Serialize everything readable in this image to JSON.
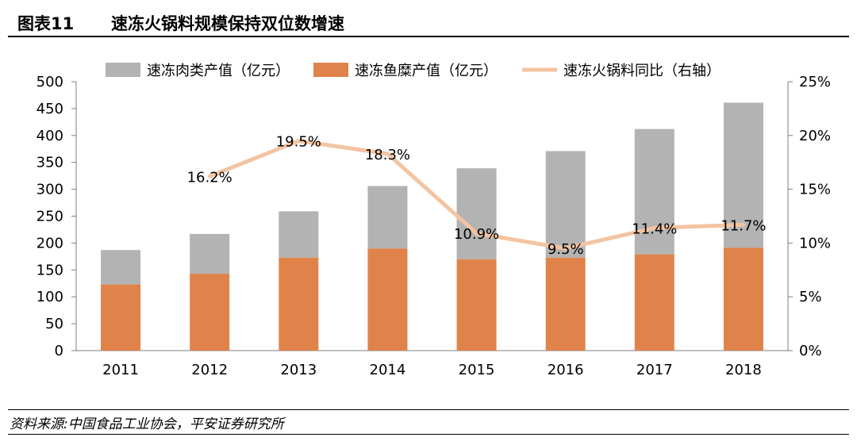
{
  "figure": {
    "number": "图表11",
    "title": "速冻火锅料规模保持双位数增速",
    "source": "资料来源:中国食品工业协会，平安证券研究所"
  },
  "colors": {
    "meat": "#b3b3b3",
    "fish": "#e0834a",
    "line": "#f3c4a1"
  },
  "chart_data": {
    "type": "bar",
    "stacked": true,
    "categories": [
      "2011",
      "2012",
      "2013",
      "2014",
      "2015",
      "2016",
      "2017",
      "2018"
    ],
    "series": [
      {
        "name": "速冻鱼糜产值（亿元）",
        "type": "bar",
        "axis": "left",
        "values": [
          123,
          143,
          173,
          190,
          170,
          173,
          179,
          191
        ]
      },
      {
        "name": "速冻肉类产值（亿元）",
        "type": "bar",
        "axis": "left",
        "values": [
          64,
          74,
          86,
          116,
          169,
          198,
          233,
          270
        ]
      },
      {
        "name": "速冻火锅料同比（右轴）",
        "type": "line",
        "axis": "right",
        "values": [
          null,
          16.2,
          19.5,
          18.3,
          10.9,
          9.5,
          11.4,
          11.7
        ],
        "labels": [
          "",
          "16.2%",
          "19.5%",
          "18.3%",
          "10.9%",
          "9.5%",
          "11.4%",
          "11.7%"
        ]
      }
    ],
    "legend_order": [
      "速冻肉类产值（亿元）",
      "速冻鱼糜产值（亿元）",
      "速冻火锅料同比（右轴）"
    ],
    "ylim_left": [
      0,
      500
    ],
    "yticks_left": [
      "0",
      "50",
      "100",
      "150",
      "200",
      "250",
      "300",
      "350",
      "400",
      "450",
      "500"
    ],
    "ylim_right": [
      0,
      25
    ],
    "yticks_right": [
      "0%",
      "5%",
      "10%",
      "15%",
      "20%",
      "25%"
    ],
    "grid": false,
    "legend_position": "top"
  }
}
